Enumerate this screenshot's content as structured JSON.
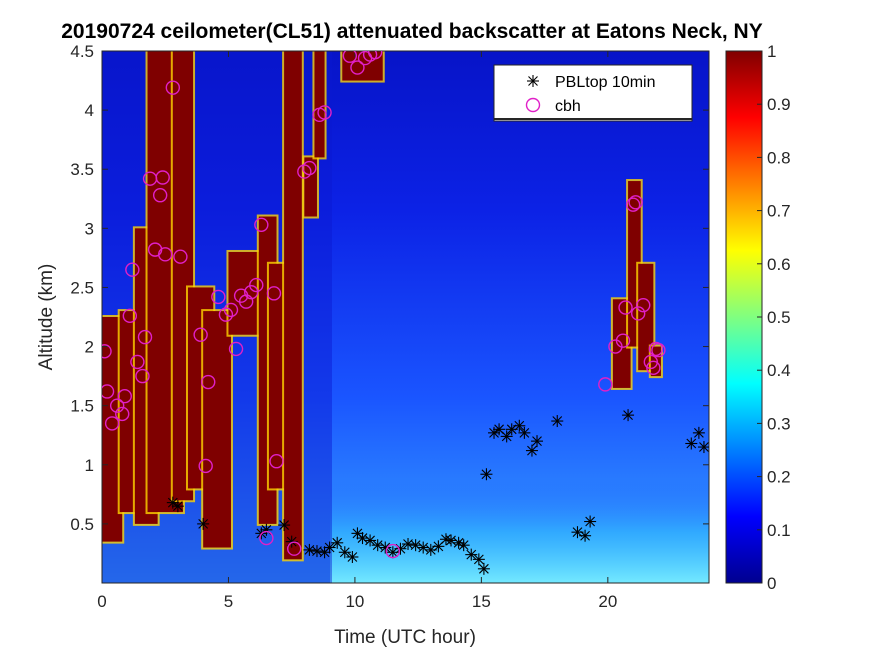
{
  "chart_data": {
    "type": "heatmap",
    "title": "20190724 ceilometer(CL51) attenuated backscatter at Eatons Neck, NY",
    "xlabel": "Time (UTC hour)",
    "ylabel": "Altitude (km)",
    "xlim": [
      0,
      24
    ],
    "ylim": [
      0,
      4.5
    ],
    "xticks": [
      "0",
      "5",
      "10",
      "15",
      "20"
    ],
    "yticks": [
      "0.5",
      "1",
      "1.5",
      "2",
      "2.5",
      "3",
      "3.5",
      "4",
      "4.5"
    ],
    "colorbar": {
      "range": [
        0,
        1
      ],
      "ticks": [
        "0",
        "0.1",
        "0.2",
        "0.3",
        "0.4",
        "0.5",
        "0.6",
        "0.7",
        "0.8",
        "0.9",
        "1"
      ],
      "colormap": "jet"
    },
    "clouds": [
      {
        "t0": 0.0,
        "t1": 0.8,
        "z0": 0.35,
        "z1": 2.25
      },
      {
        "t0": 0.7,
        "t1": 1.6,
        "z0": 0.6,
        "z1": 2.3
      },
      {
        "t0": 1.3,
        "t1": 2.2,
        "z0": 0.5,
        "z1": 3.0
      },
      {
        "t0": 1.8,
        "t1": 3.2,
        "z0": 0.6,
        "z1": 4.5
      },
      {
        "t0": 2.8,
        "t1": 3.6,
        "z0": 0.7,
        "z1": 4.5
      },
      {
        "t0": 3.4,
        "t1": 4.4,
        "z0": 0.8,
        "z1": 2.5
      },
      {
        "t0": 4.0,
        "t1": 5.1,
        "z0": 0.3,
        "z1": 2.3
      },
      {
        "t0": 5.0,
        "t1": 6.4,
        "z0": 2.1,
        "z1": 2.8
      },
      {
        "t0": 6.2,
        "t1": 6.9,
        "z0": 0.5,
        "z1": 3.1
      },
      {
        "t0": 6.6,
        "t1": 7.4,
        "z0": 0.8,
        "z1": 2.7
      },
      {
        "t0": 7.2,
        "t1": 7.9,
        "z0": 0.2,
        "z1": 4.5
      },
      {
        "t0": 8.0,
        "t1": 8.5,
        "z0": 3.1,
        "z1": 3.6
      },
      {
        "t0": 8.4,
        "t1": 8.8,
        "z0": 3.6,
        "z1": 4.5
      },
      {
        "t0": 9.5,
        "t1": 11.1,
        "z0": 4.25,
        "z1": 4.5
      },
      {
        "t0": 20.2,
        "t1": 20.9,
        "z0": 1.65,
        "z1": 2.4
      },
      {
        "t0": 20.8,
        "t1": 21.3,
        "z0": 2.0,
        "z1": 3.4
      },
      {
        "t0": 21.2,
        "t1": 21.8,
        "z0": 1.8,
        "z1": 2.7
      },
      {
        "t0": 21.7,
        "t1": 22.1,
        "z0": 1.75,
        "z1": 2.0
      }
    ],
    "series": [
      {
        "name": "PBLtop 10min",
        "marker": "asterisk",
        "color": "#000000",
        "x": [
          2.8,
          3.0,
          4.0,
          6.3,
          6.5,
          7.2,
          7.5,
          8.2,
          8.5,
          8.8,
          9.0,
          9.3,
          9.6,
          9.9,
          10.1,
          10.3,
          10.6,
          10.9,
          11.2,
          11.5,
          11.8,
          12.1,
          12.4,
          12.7,
          13.0,
          13.3,
          13.6,
          13.8,
          14.1,
          14.3,
          14.6,
          14.9,
          15.1,
          15.2,
          15.5,
          15.7,
          16.0,
          16.2,
          16.5,
          16.7,
          17.0,
          17.2,
          18.0,
          18.8,
          19.1,
          19.3,
          20.8,
          23.3,
          23.6,
          23.8
        ],
        "y": [
          0.68,
          0.65,
          0.5,
          0.42,
          0.45,
          0.49,
          0.35,
          0.28,
          0.27,
          0.26,
          0.3,
          0.34,
          0.26,
          0.22,
          0.42,
          0.38,
          0.36,
          0.32,
          0.3,
          0.26,
          0.29,
          0.33,
          0.32,
          0.3,
          0.28,
          0.31,
          0.37,
          0.36,
          0.34,
          0.32,
          0.24,
          0.2,
          0.12,
          0.92,
          1.27,
          1.3,
          1.24,
          1.3,
          1.33,
          1.27,
          1.12,
          1.2,
          1.37,
          0.43,
          0.4,
          0.52,
          1.42,
          1.18,
          1.27,
          1.15
        ]
      },
      {
        "name": "cbh",
        "marker": "circle",
        "color": "#e020c8",
        "x": [
          0.1,
          0.2,
          0.4,
          0.6,
          0.8,
          0.9,
          1.1,
          1.2,
          1.4,
          1.6,
          1.7,
          1.9,
          2.1,
          2.3,
          2.4,
          2.5,
          2.8,
          3.1,
          3.9,
          4.1,
          4.2,
          4.6,
          4.9,
          5.1,
          5.3,
          5.5,
          5.7,
          5.9,
          6.1,
          6.3,
          6.5,
          6.8,
          6.9,
          7.6,
          8.0,
          8.2,
          8.6,
          8.8,
          9.8,
          10.1,
          10.4,
          10.6,
          10.8,
          11.5,
          19.9,
          20.3,
          20.6,
          20.7,
          21.0,
          21.1,
          21.2,
          21.4,
          21.7,
          21.8,
          21.9,
          22.0
        ],
        "y": [
          1.96,
          1.62,
          1.35,
          1.5,
          1.43,
          1.58,
          2.26,
          2.65,
          1.87,
          1.75,
          2.08,
          3.42,
          2.82,
          3.28,
          3.43,
          2.78,
          4.19,
          2.76,
          2.1,
          0.99,
          1.7,
          2.42,
          2.27,
          2.31,
          1.98,
          2.43,
          2.38,
          2.46,
          2.52,
          3.03,
          0.38,
          2.45,
          1.03,
          0.29,
          3.48,
          3.51,
          3.96,
          3.98,
          4.46,
          4.36,
          4.44,
          4.47,
          4.49,
          0.27,
          1.68,
          2.0,
          2.05,
          2.33,
          3.2,
          3.22,
          2.28,
          2.35,
          1.87,
          1.82,
          1.98,
          1.97
        ]
      }
    ],
    "legend": {
      "location": "top-right",
      "entries": [
        "PBLtop 10min",
        "cbh"
      ]
    }
  }
}
